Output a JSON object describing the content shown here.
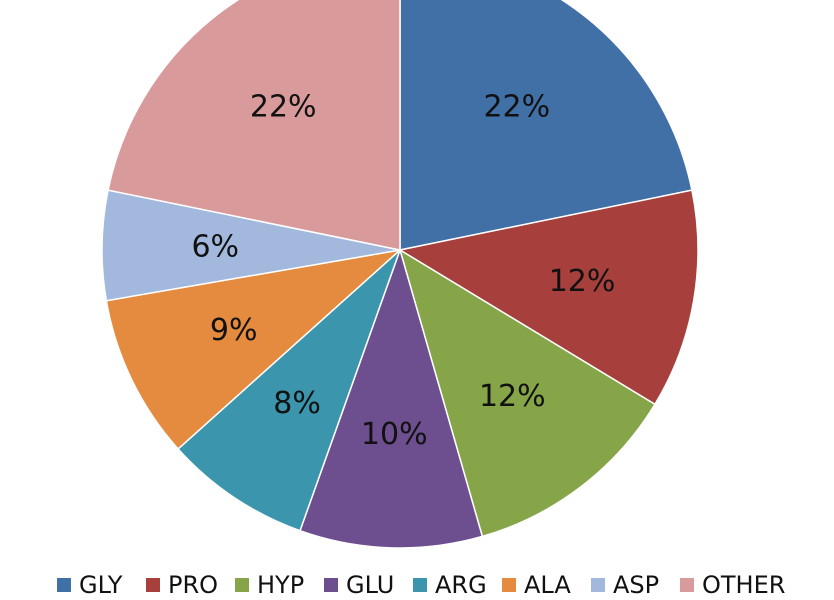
{
  "chart_data": {
    "type": "pie",
    "title": "",
    "legend_position": "bottom",
    "start_angle_deg": 0,
    "direction": "clockwise",
    "slices": [
      {
        "name": "GLY",
        "value": 22,
        "label": "22%",
        "color": "#4170a7"
      },
      {
        "name": "PRO",
        "value": 12,
        "label": "12%",
        "color": "#a7403d"
      },
      {
        "name": "HYP",
        "value": 12,
        "label": "12%",
        "color": "#86a548"
      },
      {
        "name": "GLU",
        "value": 10,
        "label": "10%",
        "color": "#6d4e8f"
      },
      {
        "name": "ARG",
        "value": 8,
        "label": "8%",
        "color": "#3b96ad"
      },
      {
        "name": "ALA",
        "value": 9,
        "label": "9%",
        "color": "#e48b3f"
      },
      {
        "name": "ASP",
        "value": 6,
        "label": "6%",
        "color": "#a3b8dd"
      },
      {
        "name": "OTHER",
        "value": 22,
        "label": "22%",
        "color": "#d99a9b"
      }
    ]
  }
}
